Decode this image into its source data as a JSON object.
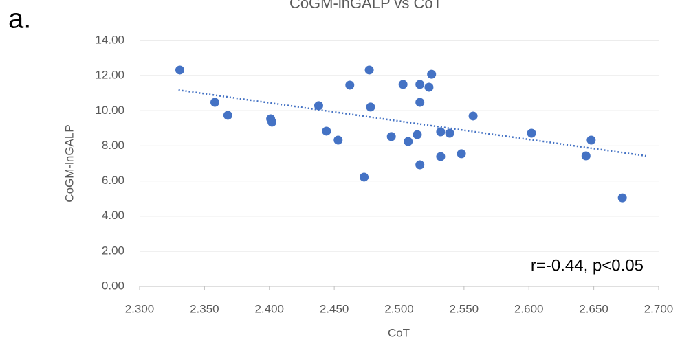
{
  "panel_label": "a.",
  "chart_data": {
    "type": "scatter",
    "title": "CoGM-lnGALP vs CoT",
    "x_label": "CoT",
    "y_label": "CoGM-lnGALP",
    "annotation": "r=-0.44, p<0.05",
    "color": "#4472c4",
    "grid": true,
    "x": [
      2.331,
      2.358,
      2.368,
      2.401,
      2.402,
      2.438,
      2.444,
      2.453,
      2.462,
      2.473,
      2.477,
      2.478,
      2.494,
      2.503,
      2.507,
      2.514,
      2.516,
      2.516,
      2.516,
      2.523,
      2.525,
      2.532,
      2.532,
      2.539,
      2.548,
      2.557,
      2.602,
      2.644,
      2.648,
      2.672
    ],
    "values": [
      12.32,
      10.48,
      9.74,
      9.54,
      9.35,
      10.29,
      8.84,
      8.33,
      11.46,
      6.22,
      12.32,
      10.21,
      8.53,
      11.5,
      8.25,
      8.64,
      11.5,
      10.48,
      6.92,
      11.34,
      12.08,
      8.8,
      7.39,
      8.72,
      7.55,
      9.7,
      8.72,
      7.43,
      8.33,
      5.04
    ],
    "trendline": {
      "x": [
        2.33,
        2.69
      ],
      "y": [
        11.18,
        7.43
      ]
    },
    "xlim": [
      2.3,
      2.7
    ],
    "xticks": [
      {
        "value": 2.3,
        "label": "2.300"
      },
      {
        "value": 2.35,
        "label": "2.350"
      },
      {
        "value": 2.4,
        "label": "2.400"
      },
      {
        "value": 2.45,
        "label": "2.450"
      },
      {
        "value": 2.5,
        "label": "2.500"
      },
      {
        "value": 2.55,
        "label": "2.550"
      },
      {
        "value": 2.6,
        "label": "2.600"
      },
      {
        "value": 2.65,
        "label": "2.650"
      },
      {
        "value": 2.7,
        "label": "2.700"
      }
    ],
    "ylim": [
      0,
      14
    ],
    "yticks": [
      {
        "value": 0,
        "label": "0.00"
      },
      {
        "value": 2,
        "label": "2.00"
      },
      {
        "value": 4,
        "label": "4.00"
      },
      {
        "value": 6,
        "label": "6.00"
      },
      {
        "value": 8,
        "label": "8.00"
      },
      {
        "value": 10,
        "label": "10.00"
      },
      {
        "value": 12,
        "label": "12.00"
      },
      {
        "value": 14,
        "label": "14.00"
      }
    ]
  }
}
